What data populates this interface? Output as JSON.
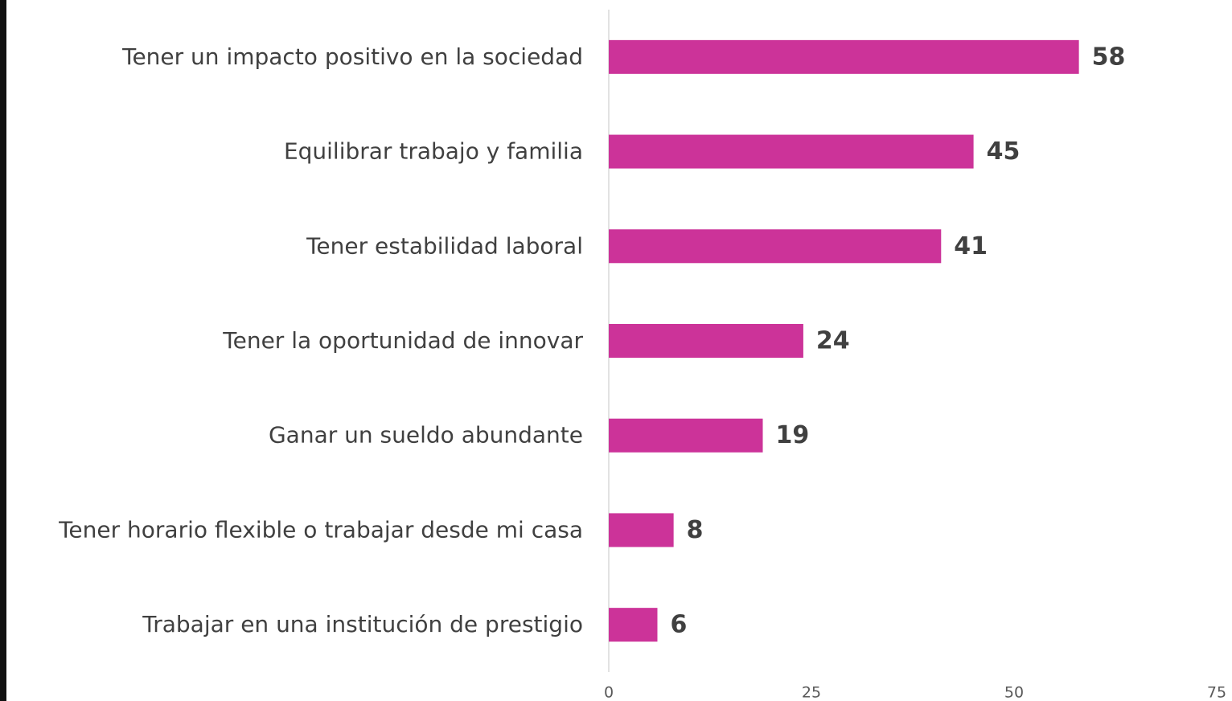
{
  "chart_data": {
    "type": "bar",
    "orientation": "horizontal",
    "categories": [
      "Tener un impacto positivo en la sociedad",
      "Equilibrar trabajo y familia",
      "Tener estabilidad laboral",
      "Tener la oportunidad de innovar",
      "Ganar un sueldo abundante",
      "Tener horario flexible o trabajar desde mi casa",
      "Trabajar en una institución de prestigio"
    ],
    "values": [
      58,
      45,
      41,
      24,
      19,
      8,
      6
    ],
    "color": "#cc3399",
    "xlim": [
      0,
      75
    ],
    "xticks": [
      0,
      25,
      50,
      75
    ],
    "grid": false
  }
}
